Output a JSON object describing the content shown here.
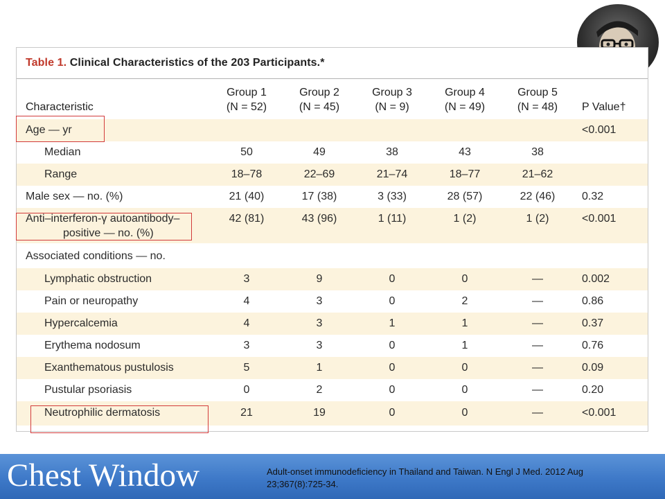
{
  "table": {
    "title_label": "Table 1.",
    "title_text": "Clinical Characteristics of the 203 Participants.*",
    "headers": {
      "characteristic": "Characteristic",
      "groups": [
        {
          "name": "Group 1",
          "n": "(N = 52)"
        },
        {
          "name": "Group 2",
          "n": "(N = 45)"
        },
        {
          "name": "Group 3",
          "n": "(N = 9)"
        },
        {
          "name": "Group 4",
          "n": "(N = 49)"
        },
        {
          "name": "Group 5",
          "n": "(N = 48)"
        }
      ],
      "p_value": "P Value†"
    },
    "rows": [
      {
        "label": "Age — yr",
        "values": [
          "",
          "",
          "",
          "",
          ""
        ],
        "p": "<0.001"
      },
      {
        "label": "Median",
        "values": [
          "50",
          "49",
          "38",
          "43",
          "38"
        ],
        "p": ""
      },
      {
        "label": "Range",
        "values": [
          "18–78",
          "22–69",
          "21–74",
          "18–77",
          "21–62"
        ],
        "p": ""
      },
      {
        "label": "Male sex — no. (%)",
        "values": [
          "21 (40)",
          "17 (38)",
          "3 (33)",
          "28 (57)",
          "22 (46)"
        ],
        "p": "0.32"
      },
      {
        "label": "Anti–interferon-γ autoantibody–",
        "label2": "positive — no. (%)",
        "values": [
          "42 (81)",
          "43 (96)",
          "1 (11)",
          "1 (2)",
          "1 (2)"
        ],
        "p": "<0.001"
      },
      {
        "label": "Associated conditions — no.",
        "values": [
          "",
          "",
          "",
          "",
          ""
        ],
        "p": ""
      },
      {
        "label": "Lymphatic obstruction",
        "values": [
          "3",
          "9",
          "0",
          "0",
          "—"
        ],
        "p": "0.002"
      },
      {
        "label": "Pain or neuropathy",
        "values": [
          "4",
          "3",
          "0",
          "2",
          "—"
        ],
        "p": "0.86"
      },
      {
        "label": "Hypercalcemia",
        "values": [
          "4",
          "3",
          "1",
          "1",
          "—"
        ],
        "p": "0.37"
      },
      {
        "label": "Erythema nodosum",
        "values": [
          "3",
          "3",
          "0",
          "1",
          "—"
        ],
        "p": "0.76"
      },
      {
        "label": "Exanthematous pustulosis",
        "values": [
          "5",
          "1",
          "0",
          "0",
          "—"
        ],
        "p": "0.09"
      },
      {
        "label": "Pustular psoriasis",
        "values": [
          "0",
          "2",
          "0",
          "0",
          "—"
        ],
        "p": "0.20"
      },
      {
        "label": "Neutrophilic dermatosis",
        "values": [
          "21",
          "19",
          "0",
          "0",
          "—"
        ],
        "p": "<0.001"
      }
    ]
  },
  "banner": {
    "title": "Chest Window",
    "citation": "Adult-onset immunodeficiency in Thailand and Taiwan. N Engl J Med. 2012 Aug 23;367(8):725-34."
  }
}
